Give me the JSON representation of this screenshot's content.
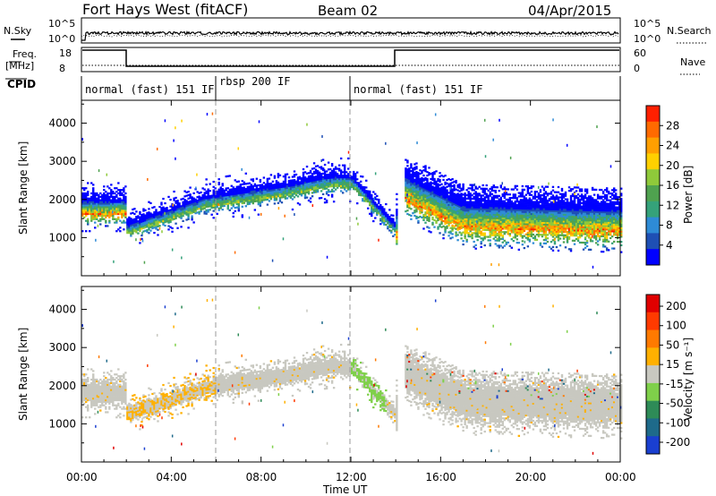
{
  "header": {
    "title": "Fort Hays West (fitACF)",
    "beam": "Beam 02",
    "date": "04/Apr/2015"
  },
  "strip_labels": {
    "nsky": "N.Sky",
    "nsky_ticks": [
      "10^5",
      "10^0"
    ],
    "nsearch": "N.Search",
    "nsearch_ticks": [
      "10^5",
      "10^0"
    ],
    "freq": "Freq.",
    "freq_unit": "[MHz]",
    "freq_ticks": [
      "18",
      "8"
    ],
    "nave": "Nave",
    "nave_ticks": [
      "60",
      "0"
    ],
    "cpid": "CPID"
  },
  "cpid_segments": [
    {
      "label": "normal (fast) 151 IF",
      "start_h": 0,
      "end_h": 6
    },
    {
      "label": "rbsp 200 IF",
      "start_h": 6,
      "end_h": 12
    },
    {
      "label": "normal (fast) 151 IF",
      "start_h": 12,
      "end_h": 24
    }
  ],
  "xaxis": {
    "label": "Time UT",
    "ticks": [
      "00:00",
      "04:00",
      "08:00",
      "12:00",
      "16:00",
      "20:00",
      "00:00"
    ],
    "range_h": [
      0,
      24
    ]
  },
  "chart_data": [
    {
      "type": "heatmap",
      "quantity": "Power",
      "ylabel": "Slant Range [km]",
      "ylim": [
        0,
        4600
      ],
      "yticks": [
        "1000",
        "2000",
        "3000",
        "4000"
      ],
      "colorbar_label": "Power [dB]",
      "colorbar_ticks": [
        "4",
        "8",
        "12",
        "16",
        "20",
        "24",
        "28"
      ],
      "colors": [
        "#0000ff",
        "#1e4fb4",
        "#2e8bd6",
        "#35a27a",
        "#4fa24f",
        "#8fc93a",
        "#ffd000",
        "#ff9f00",
        "#ff6a00",
        "#ff2000"
      ]
    },
    {
      "type": "heatmap",
      "quantity": "Velocity",
      "ylabel": "Slant Range [km]",
      "ylim": [
        0,
        4600
      ],
      "yticks": [
        "1000",
        "2000",
        "3000",
        "4000"
      ],
      "colorbar_label": "Velocity [m s⁻¹]",
      "colorbar_ticks": [
        "200",
        "100",
        "50",
        "15",
        "-15",
        "-50",
        "-100",
        "-200"
      ],
      "colors": [
        "#1a3fd0",
        "#1e6a8a",
        "#2e8b57",
        "#7fd04a",
        "#c8c8c0",
        "#ffb000",
        "#ff7a00",
        "#ff3a00",
        "#e00000"
      ]
    }
  ]
}
